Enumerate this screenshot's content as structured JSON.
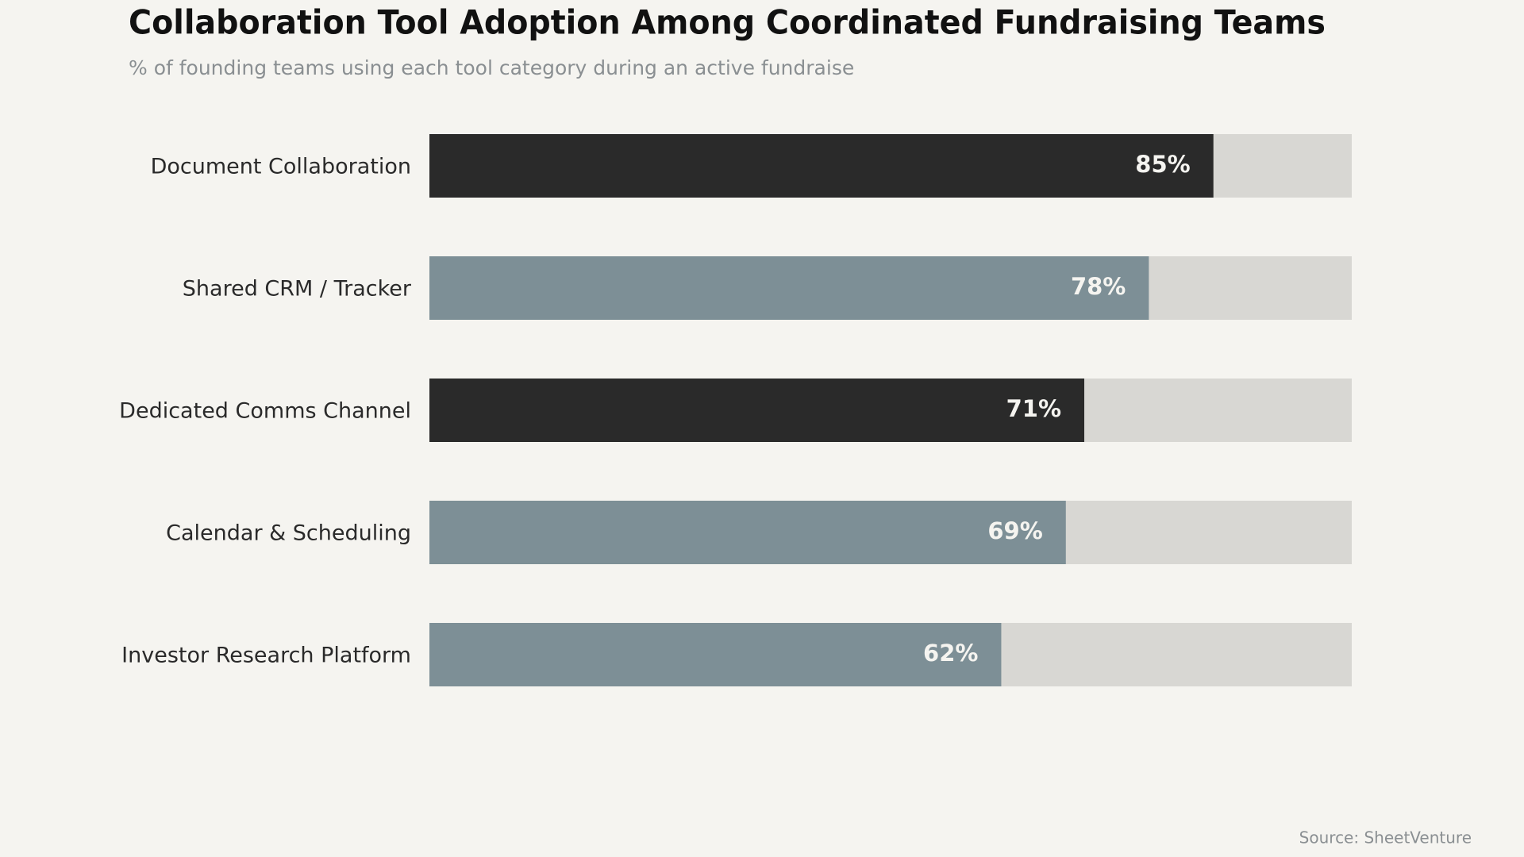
{
  "chart_data": {
    "type": "bar",
    "orientation": "horizontal",
    "title": "Collaboration Tool Adoption Among Coordinated Fundraising Teams",
    "subtitle": "% of founding teams using each tool category during an active fundraise",
    "source": "Source: SheetVenture",
    "categories": [
      "Document Collaboration",
      "Shared CRM / Tracker",
      "Dedicated Comms Channel",
      "Calendar & Scheduling",
      "Investor Research Platform"
    ],
    "values": [
      85,
      78,
      71,
      69,
      62
    ],
    "value_labels": [
      "85%",
      "78%",
      "71%",
      "69%",
      "62%"
    ],
    "colors": [
      "#2a2a2a",
      "#7d8f96",
      "#2a2a2a",
      "#7d8f96",
      "#7d8f96"
    ],
    "track_color": "#d8d7d3",
    "xlim": [
      0,
      100
    ]
  }
}
